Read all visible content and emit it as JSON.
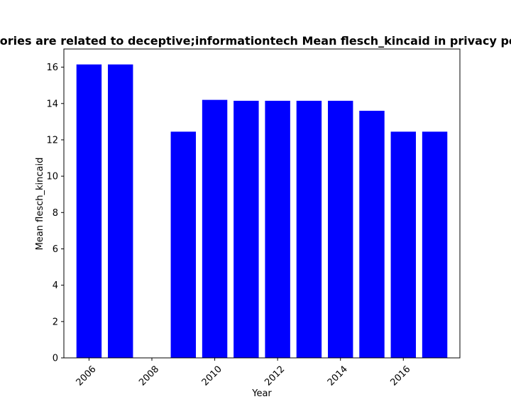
{
  "chart_data": {
    "type": "bar",
    "title": "Mean flesch_kincaid in privacy policies of websites whose categories are related to deceptive;informationtech",
    "title_visible": "tories are related to deceptive;informationtech Mean flesch_kincaid in privacy po",
    "xlabel": "Year",
    "ylabel": "Mean flesch_kincaid",
    "x": [
      2006,
      2007,
      2009,
      2010,
      2011,
      2012,
      2013,
      2014,
      2015,
      2016,
      2017
    ],
    "values": [
      16.15,
      16.15,
      12.45,
      14.2,
      14.15,
      14.15,
      14.15,
      14.15,
      13.6,
      12.45,
      12.45
    ],
    "xlim": [
      2005.2,
      2017.8
    ],
    "ylim": [
      0,
      17.0
    ],
    "xticks": [
      2006,
      2008,
      2010,
      2012,
      2014,
      2016
    ],
    "yticks": [
      0,
      2,
      4,
      6,
      8,
      10,
      12,
      14,
      16
    ],
    "bar_color": "#0000ff",
    "grid": false
  }
}
